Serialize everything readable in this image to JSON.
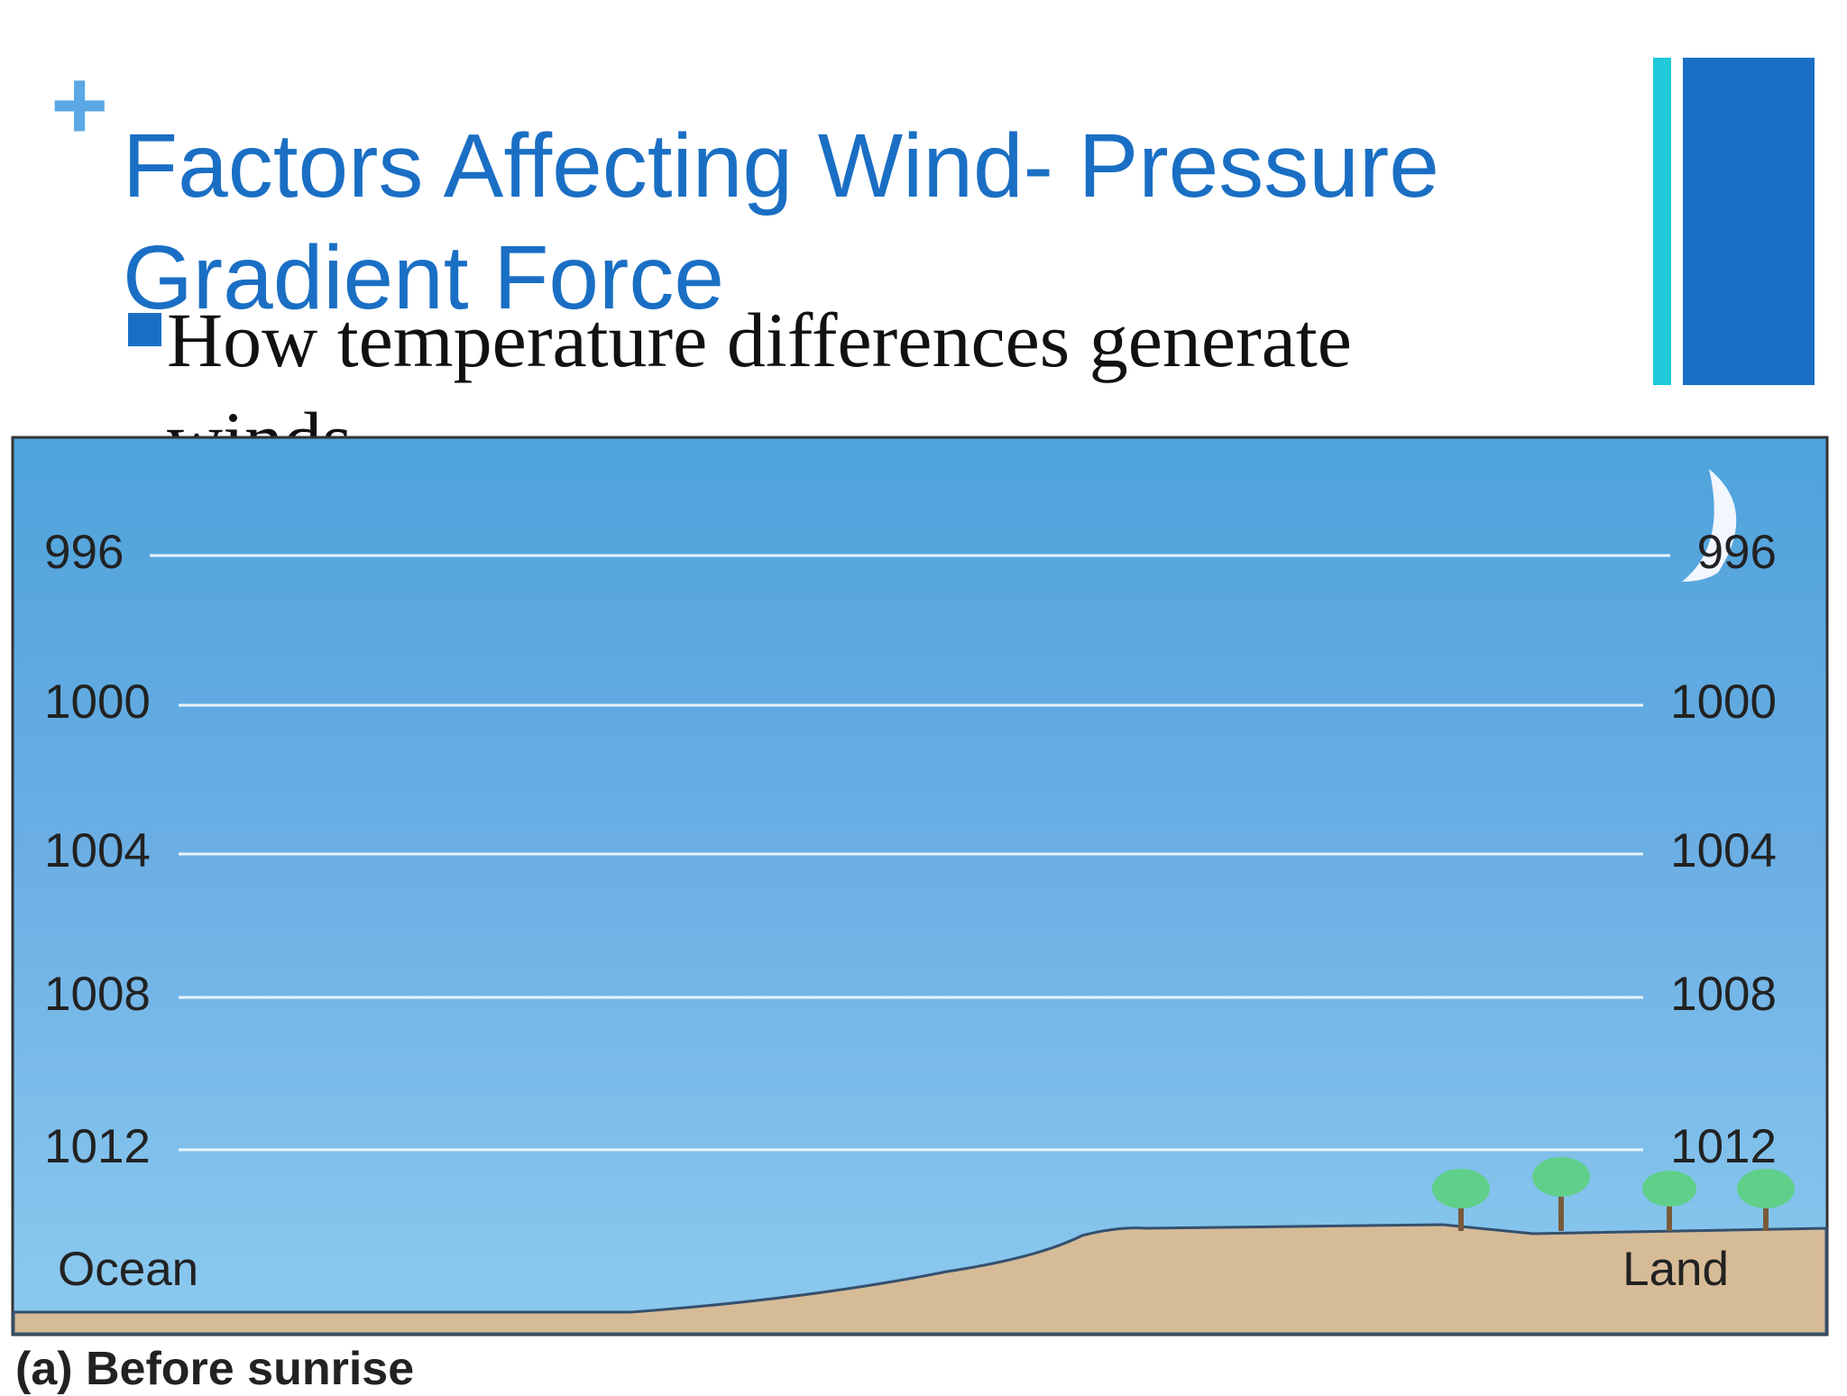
{
  "title": "Factors Affecting Wind- Pressure Gradient Force",
  "bullet": "How temperature differences generate winds",
  "diagram": {
    "isobars": [
      "996",
      "1000",
      "1004",
      "1008",
      "1012"
    ],
    "left_label": "Ocean",
    "right_label": "Land",
    "caption": "(a) Before sunrise"
  }
}
